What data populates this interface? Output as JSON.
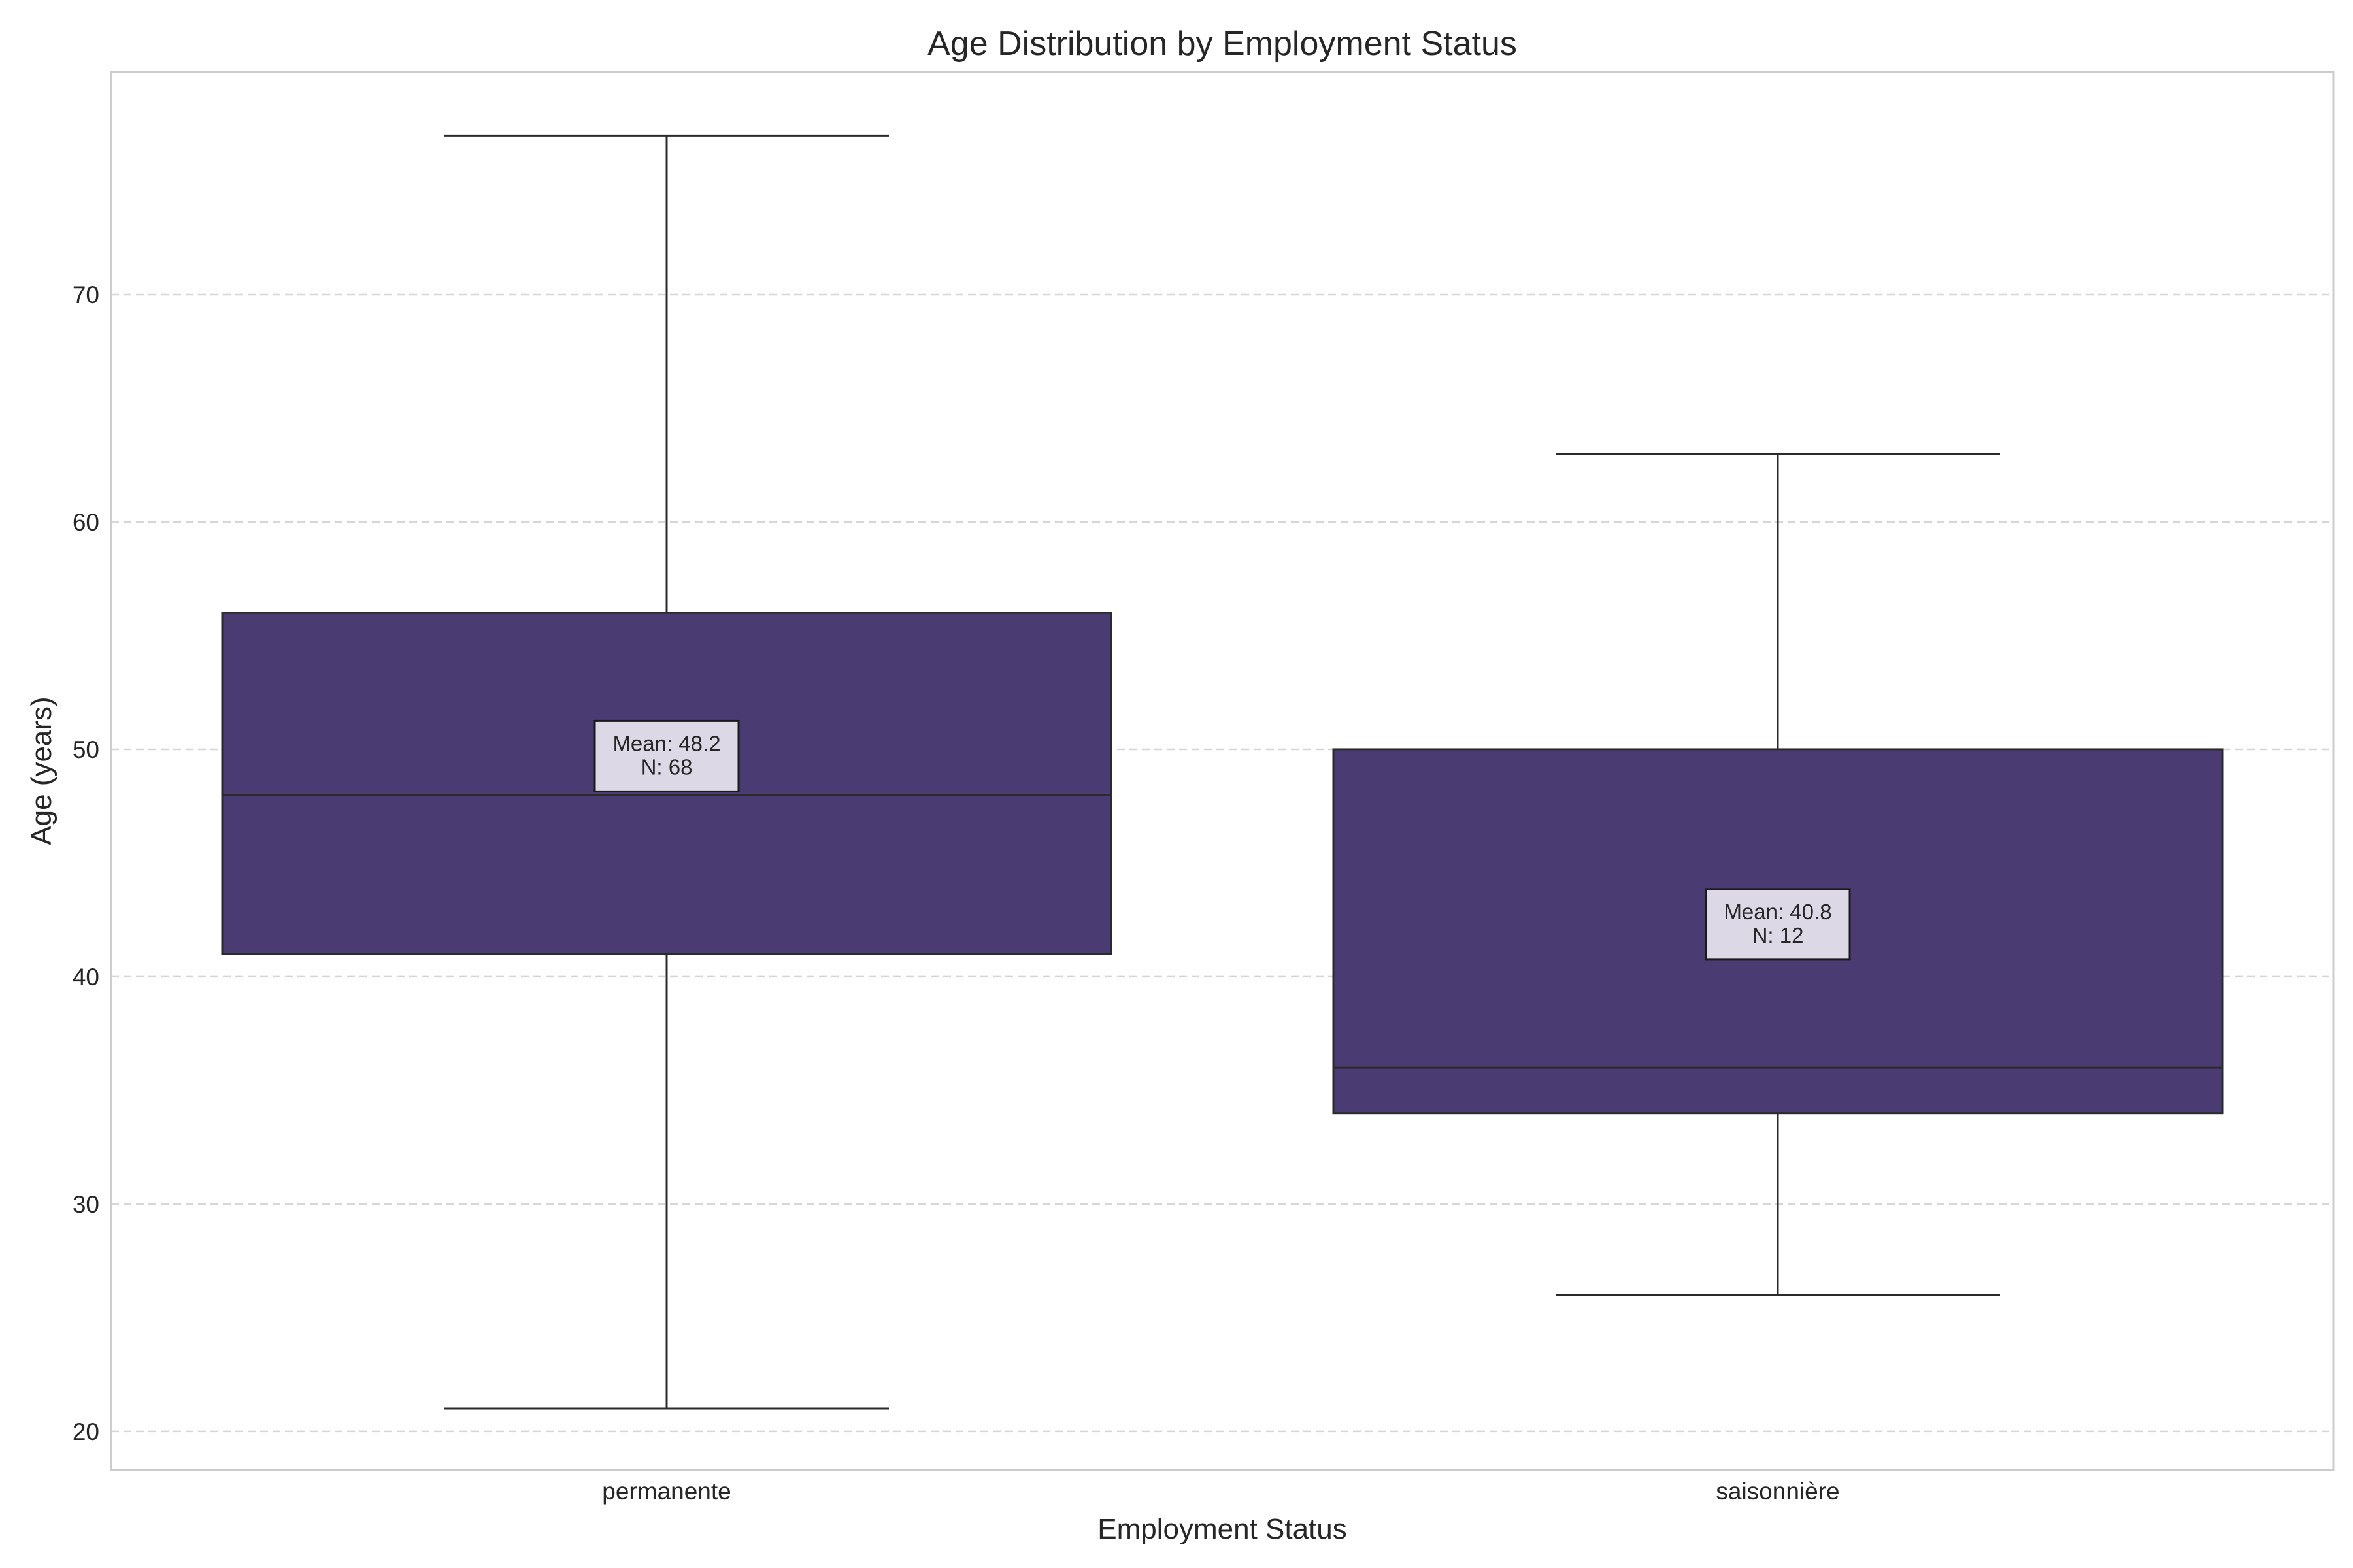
{
  "chart_data": {
    "type": "box",
    "title": "Age Distribution by Employment Status",
    "xlabel": "Employment Status",
    "ylabel": "Age (years)",
    "categories": [
      "permanente",
      "saisonnière"
    ],
    "ylim": [
      18.3,
      79.8
    ],
    "yticks": [
      20,
      30,
      40,
      50,
      60,
      70
    ],
    "grid": "y-dashed",
    "box_color": "#4a3b73",
    "annotation_bg": "#dcd8e6",
    "boxes": [
      {
        "category": "permanente",
        "whisker_low": 21,
        "q1": 41,
        "median": 48,
        "q3": 56,
        "whisker_high": 77,
        "mean": 48.2,
        "n": 68,
        "annotation_lines": [
          "Mean: 48.2",
          "N: 68"
        ]
      },
      {
        "category": "saisonnière",
        "whisker_low": 26,
        "q1": 34,
        "median": 36,
        "q3": 50,
        "whisker_high": 63,
        "mean": 40.8,
        "n": 12,
        "annotation_lines": [
          "Mean: 40.8",
          "N: 12"
        ]
      }
    ]
  }
}
